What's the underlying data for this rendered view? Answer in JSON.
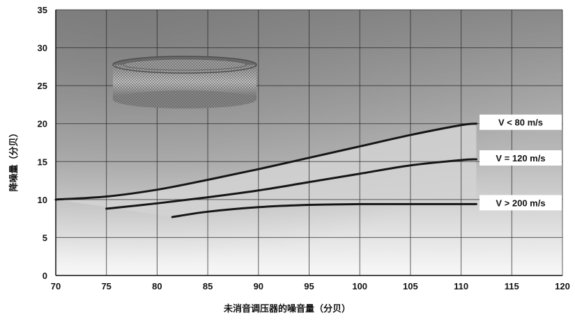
{
  "chart_data": {
    "type": "line",
    "xlabel": "未消音调压器的噪音量（分贝）",
    "ylabel": "降噪量（分贝）",
    "xlim": [
      70,
      120
    ],
    "ylim": [
      0,
      35
    ],
    "x_ticks": [
      "70",
      "75",
      "80",
      "85",
      "90",
      "95",
      "100",
      "105",
      "110",
      "115",
      "120"
    ],
    "y_ticks": [
      "0",
      "5",
      "10",
      "15",
      "20",
      "25",
      "30",
      "35"
    ],
    "grid": true,
    "background": "gradient-gray",
    "series": [
      {
        "name": "V < 80 m/s",
        "x": [
          70,
          75,
          80,
          85,
          90,
          95,
          100,
          105,
          110,
          111.5
        ],
        "y": [
          10,
          10.4,
          11.3,
          12.6,
          14.0,
          15.5,
          17.0,
          18.5,
          19.8,
          20
        ]
      },
      {
        "name": "V = 120 m/s",
        "x": [
          75,
          80,
          85,
          90,
          95,
          100,
          105,
          110,
          111.5
        ],
        "y": [
          8.8,
          9.5,
          10.3,
          11.2,
          12.3,
          13.4,
          14.5,
          15.2,
          15.3
        ]
      },
      {
        "name": "V > 200 m/s",
        "x": [
          81.5,
          85,
          90,
          95,
          100,
          105,
          110,
          111.5
        ],
        "y": [
          7.7,
          8.4,
          9.0,
          9.3,
          9.4,
          9.4,
          9.4,
          9.4
        ]
      }
    ],
    "colors": {
      "line": "#151515",
      "grid": "#2a2a2a",
      "bg_top": "#8e8e8e",
      "bg_bottom": "#f7f7f7",
      "envelope": "#d2d2d2",
      "label_box": "#ffffff"
    },
    "annotation_image": "mesh-ring-silencer-photo"
  }
}
